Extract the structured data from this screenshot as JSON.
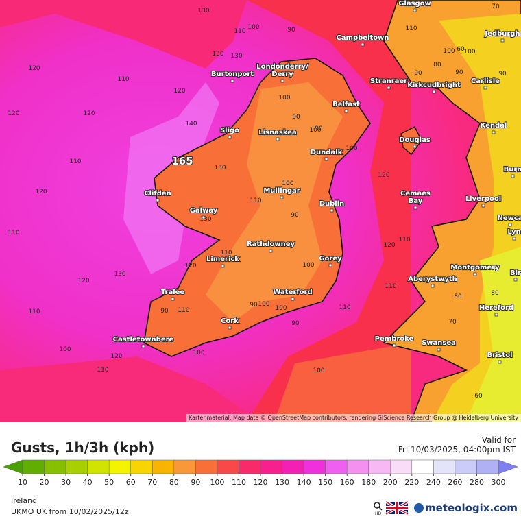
{
  "map": {
    "peak_label": "165",
    "attribution": "Kartenmaterial: Map data © OpenStreetMap contributors, rendering GIScience Research Group @ Heidelberg University",
    "places": [
      "Glasgow",
      "Jedburgh",
      "Campbeltown",
      "Burtonport",
      "Londonderry/",
      "Derry",
      "Stranraer",
      "Kirkcudbright",
      "Carlisle",
      "Belfast",
      "Sligo",
      "Lisnaskea",
      "Kendal",
      "Douglas",
      "Dundalk",
      "Burn",
      "Clifden",
      "Mullingar",
      "Dublin",
      "Cemaes",
      "Bay",
      "Liverpool",
      "Galway",
      "Newca",
      "Lyn",
      "Rathdowney",
      "Limerick",
      "Gorey",
      "Montgomery",
      "Aberystwyth",
      "Bir",
      "Tralee",
      "Waterford",
      "Hereford",
      "Cork",
      "Castletownbere",
      "Pembroke",
      "Swansea",
      "Bristol"
    ],
    "contour_labels": [
      120,
      130,
      110,
      120,
      130,
      120,
      110,
      100,
      90,
      110,
      130,
      120,
      140,
      130,
      100,
      110,
      100,
      90,
      90,
      100,
      90,
      130,
      120,
      110,
      120,
      110,
      100,
      120,
      90,
      110,
      130,
      110,
      120,
      100,
      120,
      110,
      100,
      90,
      120,
      110,
      100,
      110,
      110,
      100,
      90,
      100,
      110,
      100,
      90,
      80,
      60,
      70,
      90,
      70,
      80,
      80,
      90,
      100,
      60,
      100
    ]
  },
  "legend": {
    "title": "Gusts, 1h/3h (kph)",
    "valid_label": "Valid for",
    "valid_time": "Fri 10/03/2025, 04:00pm IST",
    "ticks": [
      10,
      20,
      30,
      40,
      50,
      60,
      70,
      80,
      90,
      100,
      110,
      120,
      130,
      140,
      150,
      160,
      180,
      200,
      220,
      240,
      260,
      280,
      300
    ],
    "low_color": "#4aa000",
    "high_color": "#7f7ff0",
    "colors": [
      "#62ae00",
      "#86c000",
      "#a8d000",
      "#d0e400",
      "#f4f400",
      "#f8d400",
      "#f8b400",
      "#f89838",
      "#f87038",
      "#f84848",
      "#f82a6a",
      "#f8208c",
      "#f420b4",
      "#f030dc",
      "#f060f0",
      "#f490f0",
      "#f8b8f4",
      "#f8dcf8",
      "#ffffff",
      "#e4e4f8",
      "#ccccf8",
      "#b0b0f4"
    ]
  },
  "footer": {
    "region": "Ireland",
    "model": "UKMO UK from  10/02/2025/12z",
    "hd": "HD",
    "brand": "meteologix.com"
  }
}
